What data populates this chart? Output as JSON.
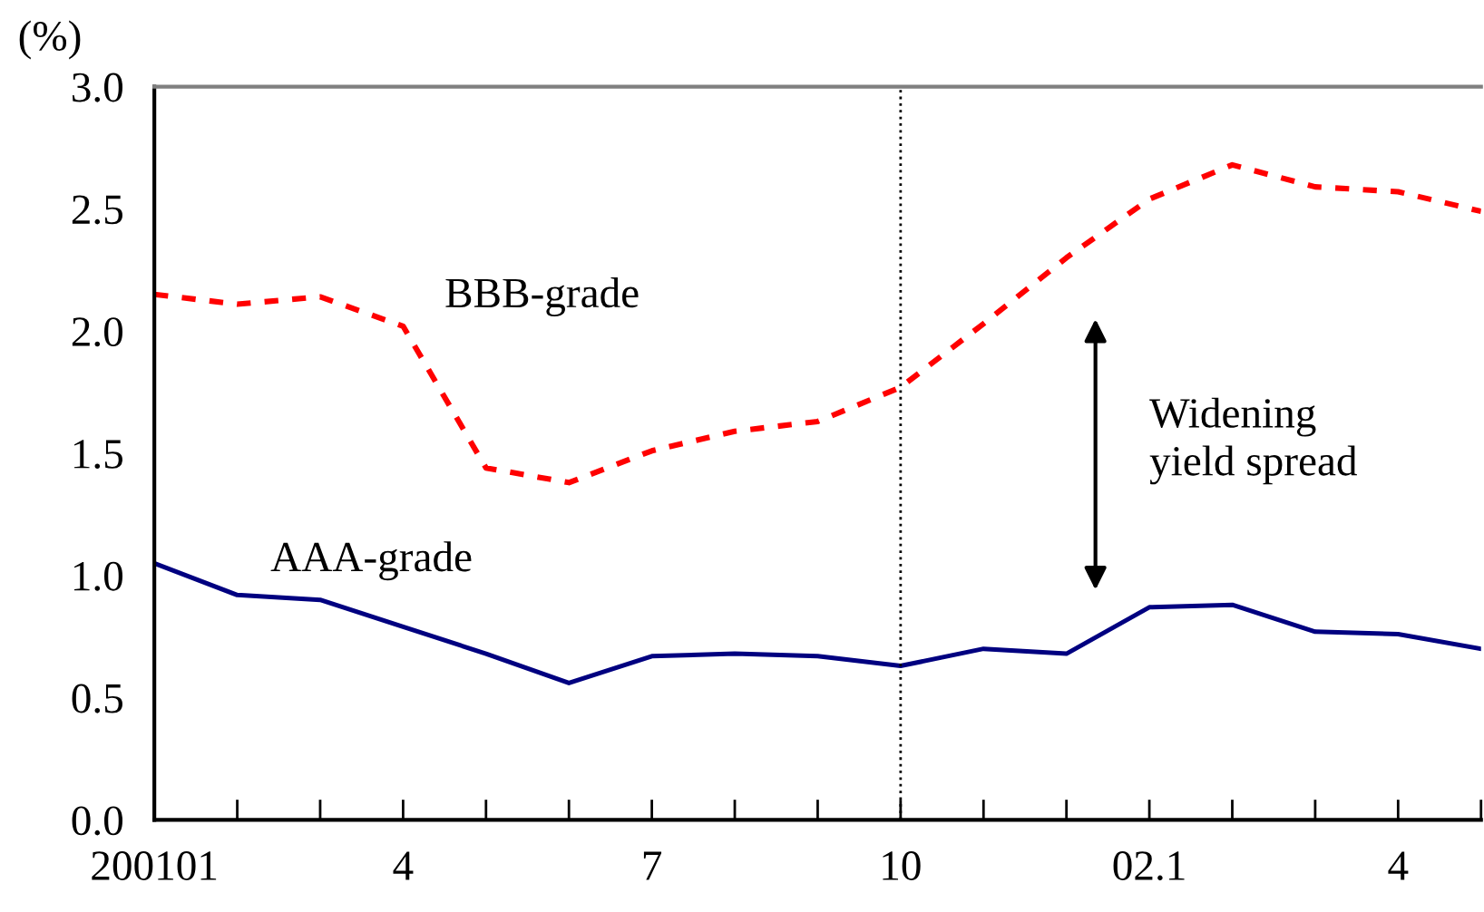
{
  "chart_data": {
    "type": "line",
    "ylabel": "(%)",
    "categories": [
      "200101",
      null,
      null,
      "4",
      null,
      null,
      "7",
      null,
      null,
      "10",
      null,
      null,
      "02.1",
      null,
      null,
      "4",
      null
    ],
    "series": [
      {
        "name": "BBB-grade",
        "color": "#ff0000",
        "line_style": "dashed",
        "values": [
          2.15,
          2.11,
          2.14,
          2.02,
          1.44,
          1.38,
          1.51,
          1.59,
          1.63,
          1.77,
          2.03,
          2.3,
          2.54,
          2.68,
          2.59,
          2.57,
          2.49
        ]
      },
      {
        "name": "AAA-grade",
        "color": "#000080",
        "line_style": "solid",
        "values": [
          1.05,
          0.92,
          0.9,
          0.79,
          0.68,
          0.56,
          0.67,
          0.68,
          0.67,
          0.63,
          0.7,
          0.68,
          0.87,
          0.88,
          0.77,
          0.76,
          0.7
        ]
      }
    ],
    "ylim": [
      0,
      3.0
    ],
    "yticks": [
      {
        "value": 0,
        "label": "0.0"
      },
      0.5,
      {
        "value": 1,
        "label": "1.0"
      },
      1.5,
      {
        "value": 2,
        "label": "2.0"
      },
      2.5,
      {
        "value": 3,
        "label": "3.0"
      }
    ],
    "ref_lines": [
      {
        "axis": "x",
        "value": "10",
        "color": "#000000",
        "line_style": "dotted"
      }
    ],
    "annotations": [
      "Widening\nyield spread"
    ],
    "grid": false,
    "legend": false,
    "marker": "none"
  }
}
